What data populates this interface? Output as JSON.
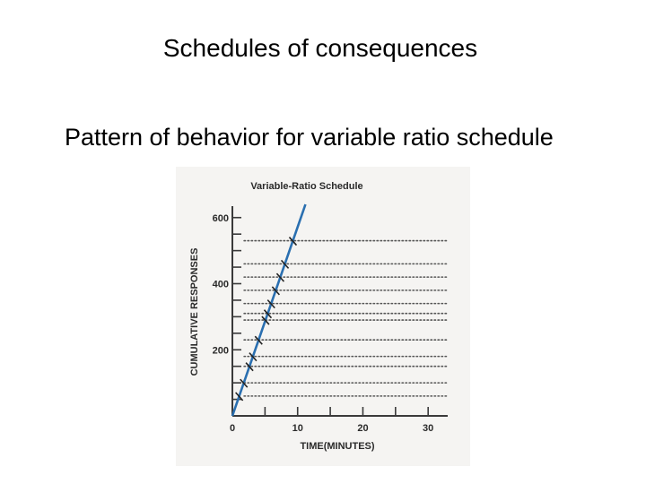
{
  "slide": {
    "title": "Schedules of consequences",
    "subtitle": "Pattern of behavior for variable ratio schedule"
  },
  "chart_data": {
    "type": "line",
    "title": "Variable-Ratio Schedule",
    "xlabel": "TIME(MINUTES)",
    "ylabel": "CUMULATIVE RESPONSES",
    "xlim": [
      0,
      33
    ],
    "ylim": [
      0,
      640
    ],
    "x_ticks": [
      0,
      10,
      20,
      30
    ],
    "y_ticks": [
      200,
      400,
      600
    ],
    "series": [
      {
        "x": [
          0,
          11.2
        ],
        "y": [
          0,
          640
        ],
        "color": "#2a6fb0"
      }
    ],
    "reinforcement_marks_y": [
      60,
      100,
      150,
      180,
      230,
      290,
      310,
      340,
      380,
      420,
      460,
      530
    ],
    "dotted_lines_y": [
      60,
      100,
      150,
      180,
      230,
      290,
      310,
      340,
      380,
      420,
      460,
      530
    ],
    "grid": false,
    "line_color": "#2a6fb0",
    "axis_color": "#3a3a3a"
  }
}
